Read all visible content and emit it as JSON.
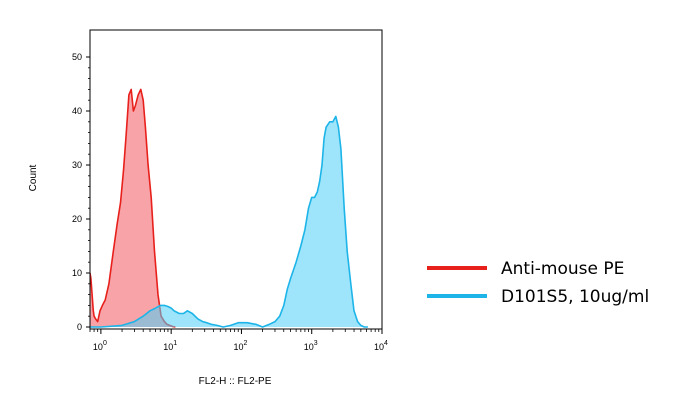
{
  "chart_data": {
    "type": "area",
    "title": "",
    "xlabel": "FL2-H :: FL2-PE",
    "ylabel": "Count",
    "x_scale": "log",
    "xlim": [
      0.7,
      10000
    ],
    "ylim": [
      0,
      55
    ],
    "y_ticks": [
      "0",
      "10",
      "20",
      "30",
      "40",
      "50"
    ],
    "x_ticks": [
      {
        "value": 1,
        "base": "10",
        "exp": "0"
      },
      {
        "value": 10,
        "base": "10",
        "exp": "1"
      },
      {
        "value": 100,
        "base": "10",
        "exp": "2"
      },
      {
        "value": 1000,
        "base": "10",
        "exp": "3"
      },
      {
        "value": 10000,
        "base": "10",
        "exp": "4"
      }
    ],
    "grid": false,
    "legend_position": "right",
    "series": [
      {
        "name": "Anti-mouse PE",
        "color": "#e8201c",
        "fill": "#f4666c",
        "x": [
          0.7,
          0.72,
          0.75,
          0.78,
          0.8,
          0.84,
          0.9,
          0.97,
          1.05,
          1.15,
          1.3,
          1.5,
          1.7,
          1.9,
          2.1,
          2.3,
          2.5,
          2.7,
          2.9,
          3.1,
          3.4,
          3.7,
          4.0,
          4.3,
          4.7,
          5.2,
          5.8,
          6.5,
          7.2,
          8.0,
          8.7,
          9.5,
          10.5,
          11.5
        ],
        "y": [
          10,
          9,
          6,
          3,
          2,
          1.5,
          1,
          3,
          4,
          5,
          8,
          14,
          19,
          23,
          29,
          36,
          43,
          44,
          40,
          41,
          43,
          44,
          42,
          37,
          30,
          24,
          14,
          6,
          2,
          1,
          0.5,
          0.3,
          0.1,
          0
        ]
      },
      {
        "name": "D101S5, 10ug/ml",
        "color": "#1db4e8",
        "fill": "#4fd0f7",
        "x": [
          0.7,
          1,
          2,
          3,
          4,
          5,
          6,
          7,
          8,
          9,
          10,
          11,
          13,
          15,
          17,
          20,
          24,
          28,
          32,
          37,
          45,
          55,
          70,
          90,
          120,
          160,
          200,
          250,
          300,
          350,
          400,
          450,
          500,
          600,
          700,
          800,
          900,
          1000,
          1100,
          1200,
          1300,
          1400,
          1500,
          1600,
          1800,
          2000,
          2200,
          2400,
          2600,
          2900,
          3200,
          3600,
          4000,
          4500,
          5000,
          5600,
          6300
        ],
        "y": [
          0,
          0,
          0.3,
          1,
          2,
          3,
          3.5,
          4,
          4,
          3.8,
          3.5,
          3,
          2.5,
          2.5,
          3,
          2.5,
          1.5,
          1,
          0.8,
          0.5,
          0.3,
          0,
          0.3,
          0.8,
          0.8,
          0.5,
          0,
          0.5,
          1,
          2,
          4,
          7,
          9,
          12,
          15,
          18,
          22,
          24,
          24,
          25,
          27,
          30,
          35,
          37,
          38,
          38,
          39,
          37,
          33,
          22,
          14,
          8,
          3,
          1,
          0.3,
          0,
          0
        ]
      }
    ]
  }
}
